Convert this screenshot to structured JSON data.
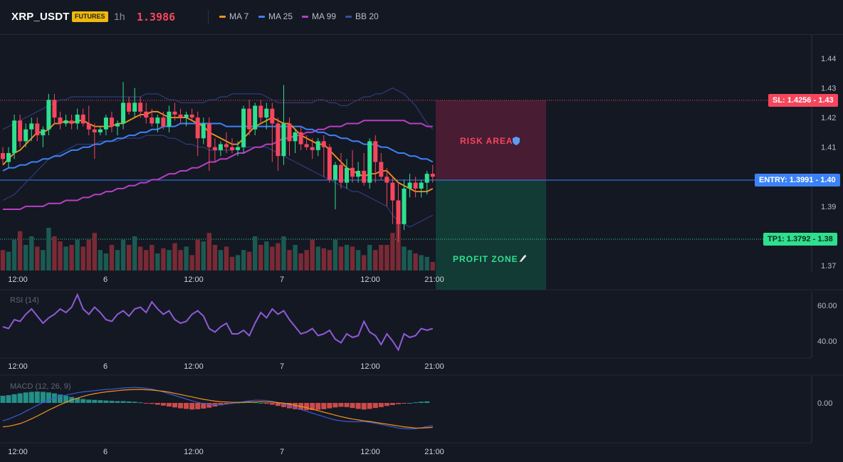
{
  "header": {
    "symbol": "XRP_USDT",
    "badge": "FUTURES",
    "timeframe": "1h",
    "last_price": "1.3986",
    "price_color": "#f6465d"
  },
  "legend": [
    {
      "label": "MA 7",
      "color": "#f7931a"
    },
    {
      "label": "MA 25",
      "color": "#3b82f6"
    },
    {
      "label": "MA 99",
      "color": "#b83fc3"
    },
    {
      "label": "BB 20",
      "color": "#3b4e9a"
    }
  ],
  "levels": {
    "sl_label": "SL: 1.4256",
    "sl_axis": "1.43",
    "entry_label": "ENTRY: 1.3991",
    "entry_axis": "1.40",
    "tp_label": "TP1: 1.3792",
    "tp_axis": "1.38",
    "risk_text": "RISK AREA",
    "profit_text": "PROFIT ZONE",
    "risk_icon": "shield-icon",
    "profit_icon": "rocket-icon"
  },
  "price_axis": [
    "1.44",
    "1.43",
    "1.42",
    "1.41",
    "1.40",
    "1.39",
    "1.38",
    "1.37"
  ],
  "time_axis": [
    "12:00",
    "6",
    "12:00",
    "7",
    "12:00",
    "21:00"
  ],
  "rsi": {
    "title": "RSI (14)",
    "axis": [
      "60.00",
      "40.00"
    ]
  },
  "macd": {
    "title": "MACD (12, 26, 9)",
    "axis": [
      "0.00"
    ]
  },
  "chart_data": {
    "type": "candlestick",
    "symbol": "XRP_USDT",
    "interval": "1h",
    "ylim": [
      1.365,
      1.447
    ],
    "candles": [
      [
        1.408,
        1.41,
        1.404,
        1.406
      ],
      [
        1.405,
        1.41,
        1.403,
        1.408
      ],
      [
        1.408,
        1.421,
        1.406,
        1.419
      ],
      [
        1.419,
        1.421,
        1.41,
        1.412
      ],
      [
        1.412,
        1.418,
        1.41,
        1.416
      ],
      [
        1.416,
        1.42,
        1.412,
        1.418
      ],
      [
        1.418,
        1.42,
        1.412,
        1.414
      ],
      [
        1.414,
        1.417,
        1.41,
        1.416
      ],
      [
        1.416,
        1.428,
        1.414,
        1.426
      ],
      [
        1.426,
        1.428,
        1.418,
        1.42
      ],
      [
        1.42,
        1.422,
        1.416,
        1.418
      ],
      [
        1.418,
        1.421,
        1.417,
        1.419
      ],
      [
        1.419,
        1.421,
        1.416,
        1.418
      ],
      [
        1.418,
        1.423,
        1.416,
        1.421
      ],
      [
        1.421,
        1.423,
        1.417,
        1.418
      ],
      [
        1.418,
        1.424,
        1.414,
        1.416
      ],
      [
        1.416,
        1.418,
        1.406,
        1.415
      ],
      [
        1.415,
        1.417,
        1.414,
        1.416
      ],
      [
        1.416,
        1.421,
        1.414,
        1.42
      ],
      [
        1.42,
        1.422,
        1.415,
        1.417
      ],
      [
        1.417,
        1.419,
        1.414,
        1.418
      ],
      [
        1.418,
        1.432,
        1.416,
        1.425
      ],
      [
        1.425,
        1.427,
        1.421,
        1.422
      ],
      [
        1.422,
        1.43,
        1.42,
        1.425
      ],
      [
        1.425,
        1.427,
        1.42,
        1.422
      ],
      [
        1.422,
        1.425,
        1.418,
        1.42
      ],
      [
        1.42,
        1.423,
        1.417,
        1.418
      ],
      [
        1.418,
        1.421,
        1.415,
        1.42
      ],
      [
        1.42,
        1.422,
        1.416,
        1.417
      ],
      [
        1.417,
        1.424,
        1.415,
        1.422
      ],
      [
        1.422,
        1.425,
        1.419,
        1.421
      ],
      [
        1.421,
        1.423,
        1.418,
        1.42
      ],
      [
        1.42,
        1.422,
        1.417,
        1.421
      ],
      [
        1.421,
        1.423,
        1.419,
        1.42
      ],
      [
        1.42,
        1.422,
        1.407,
        1.413
      ],
      [
        1.413,
        1.42,
        1.411,
        1.418
      ],
      [
        1.418,
        1.42,
        1.402,
        1.41
      ],
      [
        1.41,
        1.413,
        1.405,
        1.409
      ],
      [
        1.409,
        1.412,
        1.407,
        1.411
      ],
      [
        1.411,
        1.415,
        1.408,
        1.41
      ],
      [
        1.41,
        1.413,
        1.408,
        1.409
      ],
      [
        1.409,
        1.412,
        1.407,
        1.41
      ],
      [
        1.41,
        1.424,
        1.408,
        1.423
      ],
      [
        1.423,
        1.426,
        1.414,
        1.416
      ],
      [
        1.416,
        1.425,
        1.414,
        1.424
      ],
      [
        1.424,
        1.426,
        1.418,
        1.42
      ],
      [
        1.42,
        1.425,
        1.416,
        1.423
      ],
      [
        1.423,
        1.425,
        1.405,
        1.418
      ],
      [
        1.418,
        1.42,
        1.402,
        1.407
      ],
      [
        1.407,
        1.431,
        1.404,
        1.418
      ],
      [
        1.418,
        1.42,
        1.407,
        1.412
      ],
      [
        1.412,
        1.416,
        1.408,
        1.415
      ],
      [
        1.415,
        1.417,
        1.409,
        1.411
      ],
      [
        1.411,
        1.414,
        1.409,
        1.41
      ],
      [
        1.41,
        1.413,
        1.406,
        1.409
      ],
      [
        1.409,
        1.413,
        1.407,
        1.412
      ],
      [
        1.412,
        1.414,
        1.4,
        1.41
      ],
      [
        1.41,
        1.411,
        1.398,
        1.399
      ],
      [
        1.399,
        1.405,
        1.389,
        1.404
      ],
      [
        1.404,
        1.408,
        1.396,
        1.398
      ],
      [
        1.398,
        1.406,
        1.396,
        1.403
      ],
      [
        1.403,
        1.409,
        1.398,
        1.4
      ],
      [
        1.4,
        1.405,
        1.398,
        1.402
      ],
      [
        1.402,
        1.408,
        1.397,
        1.398
      ],
      [
        1.398,
        1.413,
        1.396,
        1.412
      ],
      [
        1.412,
        1.414,
        1.398,
        1.405
      ],
      [
        1.405,
        1.408,
        1.399,
        1.4
      ],
      [
        1.4,
        1.403,
        1.39,
        1.398
      ],
      [
        1.398,
        1.4,
        1.384,
        1.392
      ],
      [
        1.392,
        1.398,
        1.378,
        1.384
      ],
      [
        1.384,
        1.399,
        1.382,
        1.396
      ],
      [
        1.396,
        1.401,
        1.393,
        1.398
      ],
      [
        1.398,
        1.4,
        1.393,
        1.396
      ],
      [
        1.396,
        1.399,
        1.393,
        1.398
      ],
      [
        1.398,
        1.402,
        1.394,
        1.401
      ],
      [
        1.401,
        1.404,
        1.398,
        1.4
      ]
    ],
    "volumes": [
      12,
      11,
      18,
      23,
      15,
      20,
      14,
      12,
      25,
      20,
      17,
      14,
      15,
      18,
      14,
      18,
      22,
      12,
      10,
      15,
      12,
      18,
      15,
      20,
      14,
      12,
      15,
      10,
      13,
      12,
      16,
      12,
      14,
      9,
      18,
      17,
      22,
      15,
      12,
      14,
      8,
      9,
      12,
      11,
      20,
      15,
      17,
      14,
      16,
      20,
      12,
      15,
      10,
      12,
      18,
      14,
      13,
      12,
      18,
      14,
      15,
      14,
      12,
      9,
      15,
      12,
      15,
      15,
      22,
      28,
      14,
      12,
      10,
      9,
      8,
      5
    ],
    "ma7": [
      1.404,
      1.406,
      1.408,
      1.409,
      1.411,
      1.413,
      1.415,
      1.415,
      1.416,
      1.418,
      1.418,
      1.419,
      1.418,
      1.419,
      1.419,
      1.418,
      1.417,
      1.417,
      1.417,
      1.417,
      1.418,
      1.418,
      1.419,
      1.42,
      1.421,
      1.421,
      1.422,
      1.422,
      1.421,
      1.42,
      1.42,
      1.42,
      1.42,
      1.419,
      1.418,
      1.417,
      1.415,
      1.414,
      1.413,
      1.412,
      1.411,
      1.411,
      1.413,
      1.415,
      1.417,
      1.418,
      1.419,
      1.42,
      1.419,
      1.418,
      1.418,
      1.416,
      1.414,
      1.413,
      1.412,
      1.411,
      1.411,
      1.409,
      1.407,
      1.405,
      1.403,
      1.402,
      1.401,
      1.4,
      1.401,
      1.401,
      1.402,
      1.402,
      1.4,
      1.398,
      1.397,
      1.396,
      1.395,
      1.395,
      1.395,
      1.396
    ],
    "ma25": [
      1.402,
      1.403,
      1.403,
      1.404,
      1.404,
      1.405,
      1.405,
      1.406,
      1.406,
      1.407,
      1.407,
      1.408,
      1.409,
      1.409,
      1.41,
      1.41,
      1.411,
      1.411,
      1.412,
      1.412,
      1.413,
      1.413,
      1.414,
      1.414,
      1.415,
      1.415,
      1.416,
      1.416,
      1.417,
      1.417,
      1.417,
      1.418,
      1.418,
      1.418,
      1.418,
      1.418,
      1.418,
      1.418,
      1.418,
      1.417,
      1.417,
      1.417,
      1.417,
      1.417,
      1.417,
      1.417,
      1.417,
      1.417,
      1.417,
      1.417,
      1.417,
      1.417,
      1.417,
      1.416,
      1.416,
      1.415,
      1.415,
      1.414,
      1.414,
      1.413,
      1.413,
      1.412,
      1.412,
      1.411,
      1.411,
      1.411,
      1.41,
      1.41,
      1.409,
      1.408,
      1.408,
      1.407,
      1.407,
      1.406,
      1.406,
      1.405
    ],
    "ma99": [
      1.389,
      1.389,
      1.389,
      1.389,
      1.39,
      1.39,
      1.39,
      1.39,
      1.391,
      1.391,
      1.391,
      1.392,
      1.392,
      1.392,
      1.393,
      1.393,
      1.394,
      1.394,
      1.395,
      1.395,
      1.396,
      1.396,
      1.397,
      1.397,
      1.398,
      1.398,
      1.399,
      1.399,
      1.4,
      1.401,
      1.401,
      1.402,
      1.402,
      1.403,
      1.403,
      1.404,
      1.405,
      1.405,
      1.406,
      1.406,
      1.407,
      1.408,
      1.408,
      1.409,
      1.41,
      1.41,
      1.411,
      1.411,
      1.412,
      1.413,
      1.413,
      1.414,
      1.414,
      1.415,
      1.415,
      1.416,
      1.416,
      1.417,
      1.417,
      1.417,
      1.418,
      1.418,
      1.418,
      1.419,
      1.419,
      1.419,
      1.419,
      1.419,
      1.419,
      1.419,
      1.419,
      1.418,
      1.418,
      1.418,
      1.417,
      1.417
    ],
    "bb_upper": [
      1.416,
      1.417,
      1.418,
      1.419,
      1.42,
      1.421,
      1.422,
      1.423,
      1.424,
      1.425,
      1.426,
      1.426,
      1.427,
      1.427,
      1.427,
      1.427,
      1.427,
      1.427,
      1.427,
      1.427,
      1.427,
      1.427,
      1.427,
      1.427,
      1.427,
      1.428,
      1.428,
      1.428,
      1.427,
      1.426,
      1.426,
      1.425,
      1.425,
      1.425,
      1.425,
      1.425,
      1.426,
      1.426,
      1.427,
      1.427,
      1.428,
      1.428,
      1.428,
      1.428,
      1.428,
      1.428,
      1.427,
      1.426,
      1.425,
      1.425,
      1.425,
      1.425,
      1.425,
      1.425,
      1.425,
      1.426,
      1.426,
      1.425,
      1.425,
      1.424,
      1.424,
      1.425,
      1.426,
      1.427,
      1.427,
      1.428,
      1.428,
      1.429,
      1.43,
      1.429,
      1.428,
      1.426,
      1.424,
      1.421,
      1.418,
      1.416
    ],
    "bb_lower": [
      1.392,
      1.393,
      1.394,
      1.396,
      1.398,
      1.4,
      1.402,
      1.404,
      1.406,
      1.407,
      1.408,
      1.409,
      1.41,
      1.411,
      1.411,
      1.411,
      1.411,
      1.412,
      1.412,
      1.412,
      1.412,
      1.413,
      1.413,
      1.413,
      1.413,
      1.414,
      1.414,
      1.414,
      1.414,
      1.413,
      1.413,
      1.412,
      1.411,
      1.411,
      1.41,
      1.41,
      1.409,
      1.409,
      1.409,
      1.409,
      1.409,
      1.41,
      1.41,
      1.41,
      1.41,
      1.41,
      1.41,
      1.409,
      1.408,
      1.407,
      1.406,
      1.405,
      1.404,
      1.403,
      1.402,
      1.401,
      1.4,
      1.399,
      1.398,
      1.397,
      1.396,
      1.395,
      1.395,
      1.394,
      1.393,
      1.392,
      1.391,
      1.39,
      1.387,
      1.385,
      1.384,
      1.383,
      1.384,
      1.385,
      1.386,
      1.387
    ],
    "rsi": [
      48,
      47,
      52,
      51,
      55,
      58,
      54,
      50,
      53,
      55,
      58,
      56,
      59,
      66,
      58,
      55,
      59,
      56,
      52,
      51,
      55,
      57,
      54,
      58,
      59,
      56,
      62,
      58,
      55,
      57,
      52,
      50,
      51,
      55,
      57,
      54,
      47,
      45,
      48,
      50,
      44,
      44,
      46,
      43,
      50,
      56,
      53,
      58,
      55,
      57,
      52,
      48,
      44,
      45,
      47,
      43,
      44,
      46,
      41,
      39,
      44,
      42,
      43,
      51,
      45,
      43,
      38,
      44,
      40,
      35,
      44,
      42,
      43,
      47,
      46,
      47
    ],
    "macd_hist": [
      2.4,
      2.6,
      2.9,
      3.2,
      3.5,
      3.7,
      3.8,
      3.7,
      3.5,
      3.2,
      2.8,
      2.4,
      2.0,
      1.6,
      1.3,
      1.1,
      1.0,
      0.9,
      0.8,
      0.7,
      0.6,
      0.6,
      0.5,
      0.4,
      0.2,
      -0.1,
      -0.3,
      -0.6,
      -0.9,
      -1.2,
      -1.5,
      -1.8,
      -2.0,
      -2.2,
      -2.1,
      -1.9,
      -1.6,
      -1.2,
      -0.8,
      -0.4,
      -0.1,
      0.1,
      0.2,
      0.3,
      0.2,
      0.0,
      -0.3,
      -0.6,
      -1.0,
      -1.4,
      -1.8,
      -2.1,
      -2.3,
      -2.4,
      -2.4,
      -2.3,
      -2.1,
      -1.8,
      -1.5,
      -1.3,
      -1.4,
      -1.7,
      -2.0,
      -2.2,
      -2.0,
      -1.7,
      -1.4,
      -1.0,
      -0.7,
      -0.4,
      -0.2,
      0.0,
      0.2,
      0.4,
      0.5
    ],
    "macd_line": [
      -6.0,
      -5.4,
      -4.6,
      -3.8,
      -2.8,
      -1.8,
      -0.8,
      0.2,
      1.0,
      1.6,
      2.2,
      2.6,
      3.0,
      3.4,
      3.7,
      3.9,
      4.1,
      4.3,
      4.5,
      4.6,
      4.8,
      5.0,
      5.1,
      5.2,
      5.1,
      4.9,
      4.6,
      4.2,
      3.7,
      3.1,
      2.5,
      1.9,
      1.3,
      0.7,
      0.2,
      -0.2,
      -0.5,
      -0.6,
      -0.6,
      -0.4,
      -0.2,
      0.1,
      0.4,
      0.7,
      0.9,
      0.9,
      0.8,
      0.5,
      0.1,
      -0.4,
      -1.0,
      -1.6,
      -2.2,
      -2.8,
      -3.4,
      -4.0,
      -4.6,
      -5.2,
      -5.7,
      -6.0,
      -6.2,
      -6.3,
      -6.3,
      -6.2,
      -6.5,
      -6.8,
      -7.2,
      -7.6,
      -8.0,
      -8.4,
      -8.6,
      -8.7,
      -8.6,
      -8.3,
      -7.9,
      -7.6
    ],
    "macd_signal": [
      -8.0,
      -7.8,
      -7.4,
      -6.9,
      -6.2,
      -5.3,
      -4.4,
      -3.4,
      -2.4,
      -1.5,
      -0.6,
      0.2,
      1.0,
      1.6,
      2.2,
      2.7,
      3.1,
      3.4,
      3.7,
      3.9,
      4.1,
      4.3,
      4.4,
      4.5,
      4.5,
      4.4,
      4.3,
      4.1,
      3.9,
      3.6,
      3.2,
      2.8,
      2.4,
      2.0,
      1.6,
      1.2,
      0.9,
      0.6,
      0.4,
      0.3,
      0.2,
      0.2,
      0.2,
      0.3,
      0.3,
      0.4,
      0.3,
      0.3,
      0.1,
      -0.1,
      -0.4,
      -0.8,
      -1.2,
      -1.6,
      -2.1,
      -2.6,
      -3.1,
      -3.6,
      -4.1,
      -4.6,
      -5.0,
      -5.4,
      -5.7,
      -6.0,
      -6.2,
      -6.5,
      -6.8,
      -7.1,
      -7.4,
      -7.7,
      -8.0,
      -8.2,
      -8.4,
      -8.4,
      -8.3,
      -8.2
    ],
    "entry": 1.3991,
    "stop_loss": 1.4256,
    "take_profit": 1.3792
  }
}
